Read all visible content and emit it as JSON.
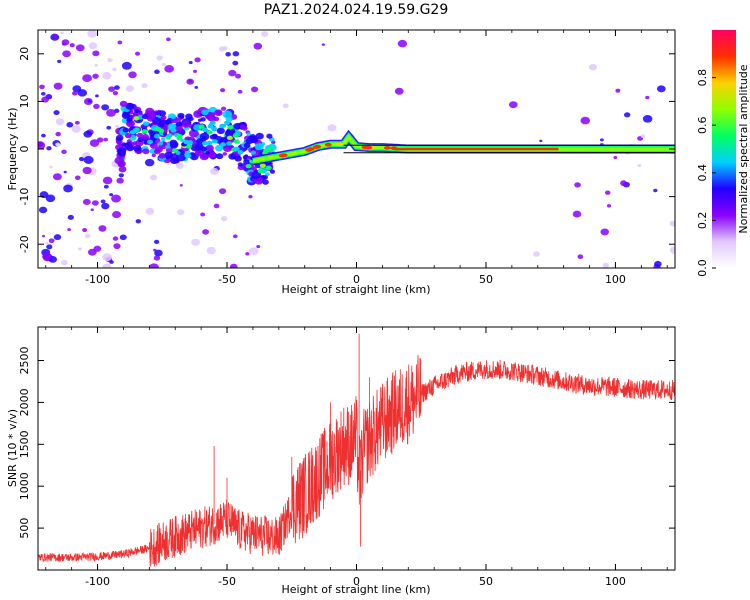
{
  "title": "PAZ1.2024.024.19.59.G29",
  "chart_data": [
    {
      "type": "heatmap",
      "xlabel": "Height of straight line (km)",
      "ylabel": "Frequency (Hz)",
      "xlim": [
        -123,
        123
      ],
      "ylim": [
        -25,
        25
      ],
      "xticks": [
        -100,
        -50,
        0,
        50,
        100
      ],
      "yticks": [
        -20,
        -10,
        0,
        10,
        20
      ],
      "xtick_labels": [
        "-100",
        "-50",
        "0",
        "50",
        "100"
      ],
      "ytick_labels": [
        "-20",
        "-10",
        "0",
        "10",
        "20"
      ],
      "ridge_frequency_hz": [
        [
          -90,
          4.5
        ],
        [
          -80,
          3.5
        ],
        [
          -70,
          2.0
        ],
        [
          -60,
          3.0
        ],
        [
          -50,
          3.5
        ],
        [
          -45,
          1.0
        ],
        [
          -40,
          -2.5
        ],
        [
          -35,
          -2.0
        ],
        [
          -30,
          -1.5
        ],
        [
          -25,
          -1.0
        ],
        [
          -20,
          -0.5
        ],
        [
          -15,
          0.5
        ],
        [
          -10,
          1.0
        ],
        [
          -5,
          1.0
        ],
        [
          -3,
          2.5
        ],
        [
          0,
          0.5
        ],
        [
          5,
          0.3
        ],
        [
          10,
          0.3
        ],
        [
          20,
          0.0
        ],
        [
          50,
          0.0
        ],
        [
          80,
          0.0
        ],
        [
          120,
          0.0
        ]
      ],
      "colorbar": {
        "label": "Normalized spectral amplitude",
        "range": [
          0,
          1
        ],
        "ticks": [
          0.0,
          0.2,
          0.4,
          0.6,
          0.8
        ],
        "tick_labels": [
          "0.0",
          "0.2",
          "0.4",
          "0.6",
          "0.8"
        ],
        "colormap": [
          "#ffffff",
          "#e0c8ff",
          "#8a00ff",
          "#2000ff",
          "#00d0ff",
          "#00ff60",
          "#90ff00",
          "#ffd000",
          "#ff3000",
          "#ff0060"
        ]
      }
    },
    {
      "type": "line",
      "xlabel": "Height of straight line (km)",
      "ylabel": "SNR (10 * v/v)",
      "xlim": [
        -123,
        123
      ],
      "ylim": [
        0,
        2900
      ],
      "xticks": [
        -100,
        -50,
        0,
        50,
        100
      ],
      "yticks": [
        500,
        1000,
        1500,
        2000,
        2500
      ],
      "xtick_labels": [
        "-100",
        "-50",
        "0",
        "50",
        "100"
      ],
      "ytick_labels": [
        "500",
        "1000",
        "1500",
        "2000",
        "2500"
      ],
      "color": "#ee3030",
      "x": [
        -123,
        -110,
        -100,
        -90,
        -80,
        -75,
        -70,
        -65,
        -60,
        -55,
        -50,
        -45,
        -40,
        -35,
        -30,
        -27,
        -25,
        -20,
        -15,
        -10,
        -5,
        -2,
        0,
        1,
        3,
        5,
        10,
        15,
        20,
        25,
        30,
        40,
        50,
        60,
        70,
        80,
        90,
        100,
        110,
        123
      ],
      "y": [
        150,
        150,
        160,
        190,
        260,
        330,
        400,
        450,
        500,
        550,
        600,
        470,
        430,
        400,
        380,
        600,
        750,
        900,
        1100,
        1300,
        1500,
        1500,
        1600,
        1100,
        1450,
        1550,
        1750,
        1900,
        2000,
        2100,
        2200,
        2350,
        2400,
        2380,
        2320,
        2250,
        2200,
        2180,
        2150,
        2150
      ],
      "spikes": [
        {
          "x": -55,
          "y": 1480
        },
        {
          "x": -50,
          "y": 1100
        },
        {
          "x": -25,
          "y": 1350
        },
        {
          "x": -10,
          "y": 2000
        },
        {
          "x": 1,
          "y": 2820
        },
        {
          "x": 1.5,
          "y": 280
        },
        {
          "x": 5,
          "y": 2300
        }
      ]
    }
  ]
}
